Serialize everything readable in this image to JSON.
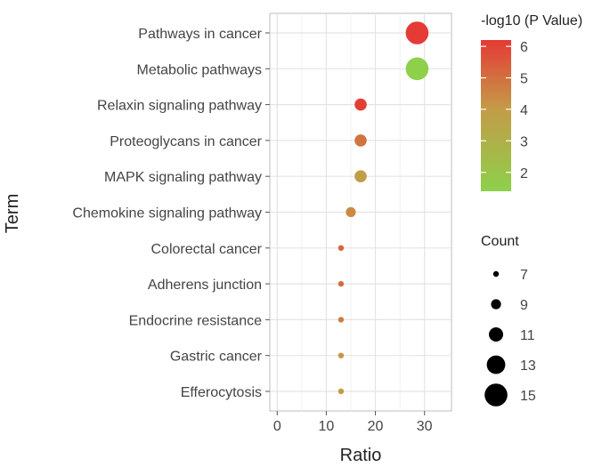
{
  "chart_data": {
    "type": "scatter",
    "subtype": "dot-plot",
    "xlabel": "Ratio",
    "ylabel": "Term",
    "xlim": [
      -1.5,
      35.5
    ],
    "xticks": [
      0,
      10,
      20,
      30
    ],
    "grid": true,
    "points": [
      {
        "term": "Pathways in cancer",
        "ratio": 28.5,
        "count": 15,
        "neglog10p": 6.2
      },
      {
        "term": "Metabolic pathways",
        "ratio": 28.5,
        "count": 15,
        "neglog10p": 1.4
      },
      {
        "term": "Relaxin signaling pathway",
        "ratio": 17.0,
        "count": 10,
        "neglog10p": 6.1
      },
      {
        "term": "Proteoglycans in cancer",
        "ratio": 17.0,
        "count": 10,
        "neglog10p": 4.9
      },
      {
        "term": "MAPK signaling pathway",
        "ratio": 17.0,
        "count": 10,
        "neglog10p": 3.9
      },
      {
        "term": "Chemokine signaling pathway",
        "ratio": 15.0,
        "count": 9,
        "neglog10p": 4.4
      },
      {
        "term": "Colorectal cancer",
        "ratio": 13.0,
        "count": 7,
        "neglog10p": 5.2
      },
      {
        "term": "Adherens junction",
        "ratio": 13.0,
        "count": 7,
        "neglog10p": 5.0
      },
      {
        "term": "Endocrine resistance",
        "ratio": 13.0,
        "count": 7,
        "neglog10p": 4.7
      },
      {
        "term": "Gastric cancer",
        "ratio": 13.0,
        "count": 7,
        "neglog10p": 4.1
      },
      {
        "term": "Efferocytosis",
        "ratio": 13.0,
        "count": 7,
        "neglog10p": 4.0
      }
    ],
    "color_legend": {
      "title": "-log10 (P Value)",
      "min": 1.4,
      "max": 6.2,
      "ticks": [
        2,
        3,
        4,
        5,
        6
      ],
      "low_color": "#8dd14a",
      "mid_color": "#c49a47",
      "high_color": "#e53a35"
    },
    "size_legend": {
      "title": "Count",
      "values": [
        7,
        9,
        11,
        13,
        15
      ]
    }
  }
}
